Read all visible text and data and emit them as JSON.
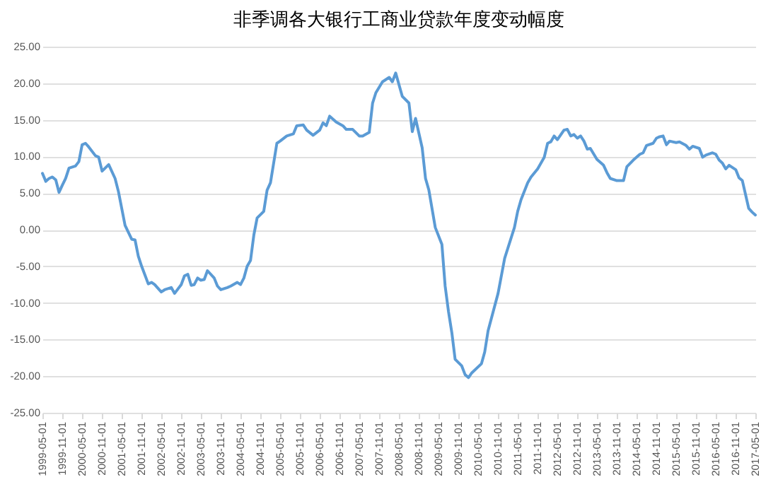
{
  "chart_data": {
    "type": "line",
    "title": "非季调各大银行工商业贷款年度变动幅度",
    "x": [
      "1999-05",
      "1999-06",
      "1999-07",
      "1999-08",
      "1999-09",
      "1999-10",
      "1999-11",
      "1999-12",
      "2000-01",
      "2000-03",
      "2000-04",
      "2000-05",
      "2000-06",
      "2000-07",
      "2000-09",
      "2000-10",
      "2000-11",
      "2001-01",
      "2001-03",
      "2001-04",
      "2001-06",
      "2001-08",
      "2001-09",
      "2001-10",
      "2001-11",
      "2002-01",
      "2002-02",
      "2002-03",
      "2002-05",
      "2002-06",
      "2002-08",
      "2002-09",
      "2002-11",
      "2002-12",
      "2003-01",
      "2003-02",
      "2003-03",
      "2003-04",
      "2003-05",
      "2003-06",
      "2003-07",
      "2003-09",
      "2003-10",
      "2003-11",
      "2004-01",
      "2004-02",
      "2004-04",
      "2004-05",
      "2004-06",
      "2004-07",
      "2004-08",
      "2004-09",
      "2004-10",
      "2004-12",
      "2005-01",
      "2005-02",
      "2005-04",
      "2005-05",
      "2005-07",
      "2005-09",
      "2005-10",
      "2005-12",
      "2006-01",
      "2006-03",
      "2006-05",
      "2006-06",
      "2006-07",
      "2006-08",
      "2006-10",
      "2006-12",
      "2007-01",
      "2007-03",
      "2007-05",
      "2007-06",
      "2007-08",
      "2007-09",
      "2007-10",
      "2007-12",
      "2008-02",
      "2008-03",
      "2008-04",
      "2008-06",
      "2008-08",
      "2008-09",
      "2008-10",
      "2008-12",
      "2009-01",
      "2009-02",
      "2009-04",
      "2009-06",
      "2009-07",
      "2009-08",
      "2009-09",
      "2009-10",
      "2009-12",
      "2010-01",
      "2010-02",
      "2010-03",
      "2010-06",
      "2010-07",
      "2010-08",
      "2010-11",
      "2011-01",
      "2011-04",
      "2011-05",
      "2011-06",
      "2011-08",
      "2011-09",
      "2011-11",
      "2012-01",
      "2012-02",
      "2012-03",
      "2012-04",
      "2012-05",
      "2012-07",
      "2012-08",
      "2012-09",
      "2012-10",
      "2012-11",
      "2012-12",
      "2013-01",
      "2013-02",
      "2013-03",
      "2013-05",
      "2013-07",
      "2013-08",
      "2013-09",
      "2013-11",
      "2014-01",
      "2014-02",
      "2014-04",
      "2014-06",
      "2014-07",
      "2014-08",
      "2014-10",
      "2014-11",
      "2014-12",
      "2015-01",
      "2015-02",
      "2015-03",
      "2015-05",
      "2015-06",
      "2015-08",
      "2015-09",
      "2015-10",
      "2015-12",
      "2016-01",
      "2016-02",
      "2016-04",
      "2016-05",
      "2016-06",
      "2016-07",
      "2016-08",
      "2016-09",
      "2016-11",
      "2016-12",
      "2017-01",
      "2017-03",
      "2017-04",
      "2017-05"
    ],
    "series": [
      {
        "color": "#5b9bd5",
        "values": [
          7.7,
          6.6,
          7.0,
          7.2,
          6.8,
          5.1,
          6.1,
          7.0,
          8.4,
          8.7,
          9.3,
          11.6,
          11.8,
          11.3,
          10.1,
          9.9,
          8.0,
          8.9,
          7.0,
          5.2,
          0.6,
          -1.3,
          -1.4,
          -3.6,
          -5.0,
          -7.4,
          -7.2,
          -7.5,
          -8.5,
          -8.2,
          -7.9,
          -8.7,
          -7.5,
          -6.3,
          -6.1,
          -7.6,
          -7.5,
          -6.6,
          -6.9,
          -6.8,
          -5.6,
          -6.6,
          -7.7,
          -8.2,
          -7.9,
          -7.7,
          -7.2,
          -7.5,
          -6.6,
          -5.0,
          -4.2,
          -0.7,
          1.6,
          2.5,
          5.4,
          6.4,
          11.8,
          12.1,
          12.8,
          13.1,
          14.2,
          14.3,
          13.6,
          12.9,
          13.6,
          14.6,
          14.2,
          15.5,
          14.7,
          14.2,
          13.7,
          13.7,
          12.8,
          12.8,
          13.3,
          17.3,
          18.7,
          20.2,
          20.8,
          20.2,
          21.4,
          18.2,
          17.3,
          13.4,
          15.2,
          11.2,
          7.0,
          5.4,
          0.3,
          -2.0,
          -7.7,
          -11.2,
          -14.1,
          -17.7,
          -18.6,
          -19.8,
          -20.2,
          -19.6,
          -18.3,
          -16.7,
          -13.8,
          -8.7,
          -3.9,
          0.3,
          2.5,
          4.1,
          6.4,
          7.2,
          8.3,
          9.9,
          11.8,
          12.0,
          12.8,
          12.3,
          13.6,
          13.7,
          12.8,
          13.0,
          12.5,
          12.8,
          12.1,
          11.0,
          11.1,
          9.6,
          8.8,
          7.8,
          7.0,
          6.7,
          6.7,
          8.6,
          9.5,
          10.3,
          10.5,
          11.5,
          11.8,
          12.5,
          12.7,
          12.8,
          11.6,
          12.1,
          11.9,
          12.0,
          11.5,
          11.0,
          11.4,
          11.1,
          9.9,
          10.2,
          10.5,
          10.3,
          9.5,
          9.1,
          8.3,
          8.8,
          8.2,
          7.1,
          6.7,
          2.9,
          2.4,
          2.0
        ]
      }
    ],
    "xlim": [
      "1999-05",
      "2017-05"
    ],
    "xticks": [
      {
        "value": "1999-05",
        "label": "1999-05-01"
      },
      {
        "value": "1999-11",
        "label": "1999-11-01"
      },
      {
        "value": "2000-05",
        "label": "2000-05-01"
      },
      {
        "value": "2000-11",
        "label": "2000-11-01"
      },
      {
        "value": "2001-05",
        "label": "2001-05-01"
      },
      {
        "value": "2001-11",
        "label": "2001-11-01"
      },
      {
        "value": "2002-05",
        "label": "2002-05-01"
      },
      {
        "value": "2002-11",
        "label": "2002-11-01"
      },
      {
        "value": "2003-05",
        "label": "2003-05-01"
      },
      {
        "value": "2003-11",
        "label": "2003-11-01"
      },
      {
        "value": "2004-05",
        "label": "2004-05-01"
      },
      {
        "value": "2004-11",
        "label": "2004-11-01"
      },
      {
        "value": "2005-05",
        "label": "2005-05-01"
      },
      {
        "value": "2005-11",
        "label": "2005-11-01"
      },
      {
        "value": "2006-05",
        "label": "2006-05-01"
      },
      {
        "value": "2006-11",
        "label": "2006-11-01"
      },
      {
        "value": "2007-05",
        "label": "2007-05-01"
      },
      {
        "value": "2007-11",
        "label": "2007-11-01"
      },
      {
        "value": "2008-05",
        "label": "2008-05-01"
      },
      {
        "value": "2008-11",
        "label": "2008-11-01"
      },
      {
        "value": "2009-05",
        "label": "2009-05-01"
      },
      {
        "value": "2009-11",
        "label": "2009-11-01"
      },
      {
        "value": "2010-05",
        "label": "2010-05-01"
      },
      {
        "value": "2010-11",
        "label": "2010-11-01"
      },
      {
        "value": "2011-05",
        "label": "2011-05-01"
      },
      {
        "value": "2011-11",
        "label": "2011-11-01"
      },
      {
        "value": "2012-05",
        "label": "2012-05-01"
      },
      {
        "value": "2012-11",
        "label": "2012-11-01"
      },
      {
        "value": "2013-05",
        "label": "2013-05-01"
      },
      {
        "value": "2013-11",
        "label": "2013-11-01"
      },
      {
        "value": "2014-05",
        "label": "2014-05-01"
      },
      {
        "value": "2014-11",
        "label": "2014-11-01"
      },
      {
        "value": "2015-05",
        "label": "2015-05-01"
      },
      {
        "value": "2015-11",
        "label": "2015-11-01"
      },
      {
        "value": "2016-05",
        "label": "2016-05-01"
      },
      {
        "value": "2016-11",
        "label": "2016-11-01"
      },
      {
        "value": "2017-05",
        "label": "2017-05-01"
      }
    ],
    "ylim": [
      -25,
      25
    ],
    "yticks": [
      {
        "value": -25,
        "label": "-25.00"
      },
      {
        "value": -20,
        "label": "-20.00"
      },
      {
        "value": -15,
        "label": "-15.00"
      },
      {
        "value": -10,
        "label": "-10.00"
      },
      {
        "value": -5,
        "label": "-5.00"
      },
      {
        "value": 0,
        "label": "0.00"
      },
      {
        "value": 5,
        "label": "5.00"
      },
      {
        "value": 10,
        "label": "10.00"
      },
      {
        "value": 15,
        "label": "15.00"
      },
      {
        "value": 20,
        "label": "20.00"
      },
      {
        "value": 25,
        "label": "25.00"
      }
    ],
    "grid": "y"
  }
}
